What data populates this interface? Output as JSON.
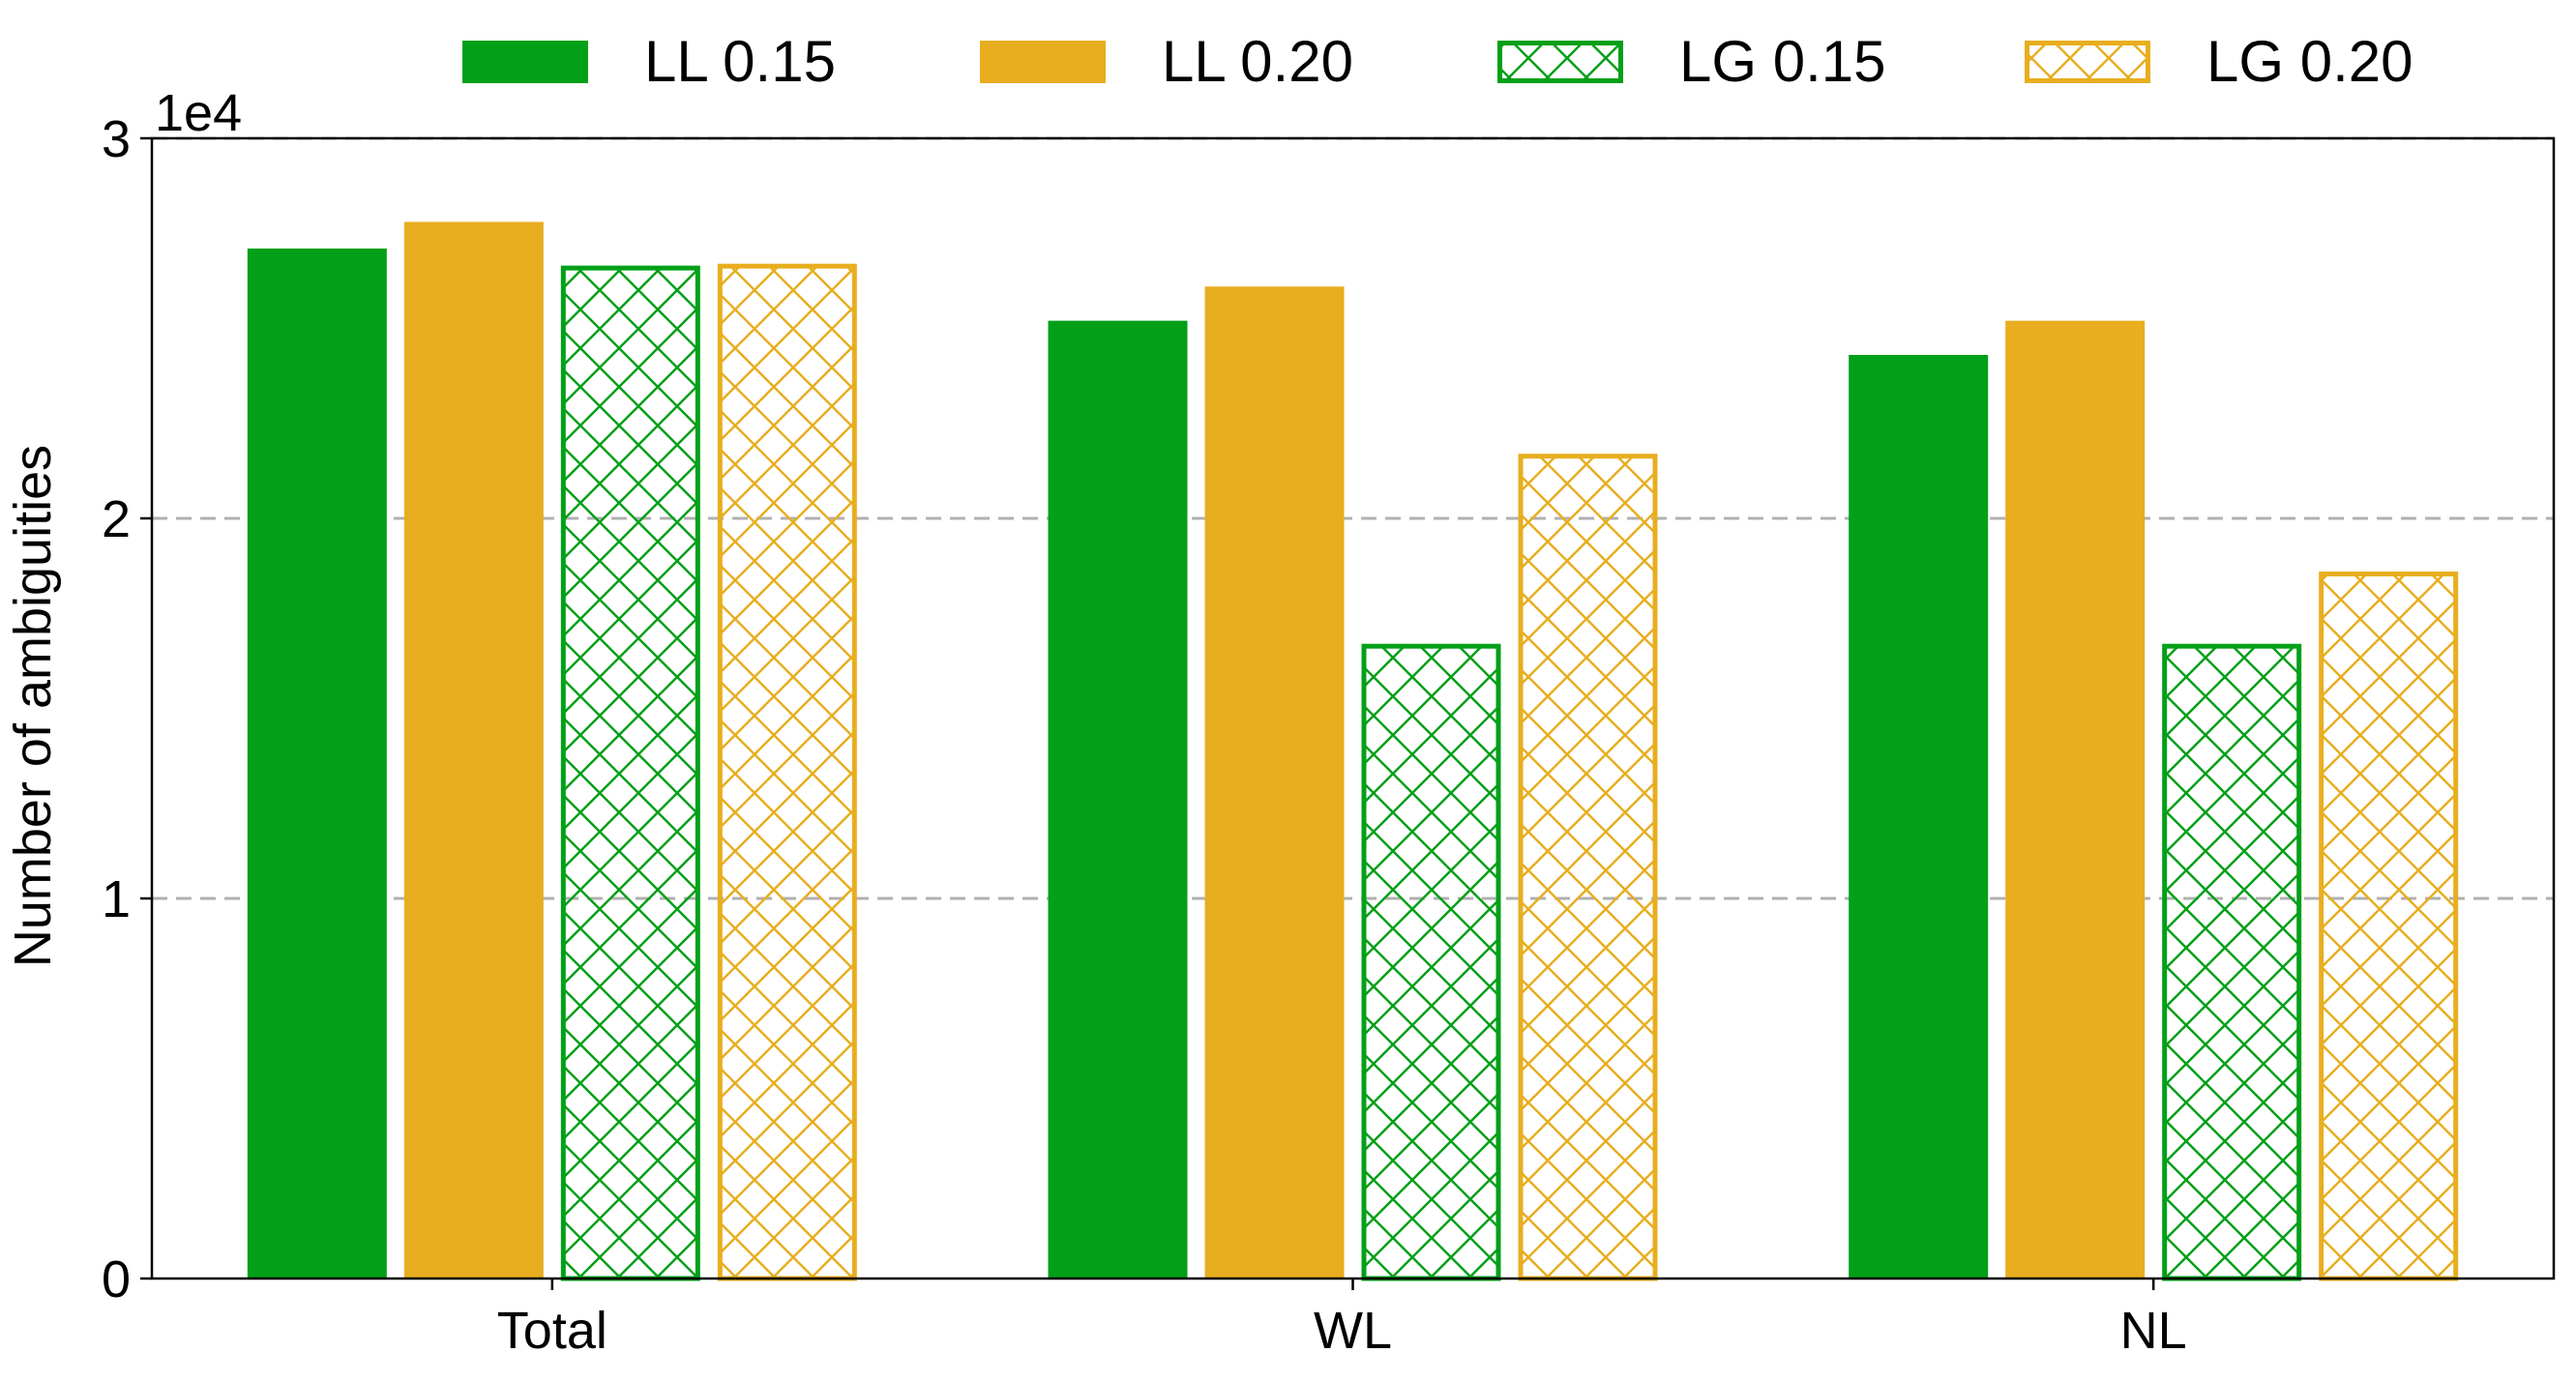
{
  "chart_data": {
    "type": "bar",
    "title": "",
    "xlabel": "",
    "ylabel": "Number of ambiguities",
    "y_multiplier_label": "1e4",
    "ylim": [
      0,
      30000
    ],
    "yticks": [
      0,
      10000,
      20000,
      30000
    ],
    "ytick_labels": [
      "0",
      "1",
      "2",
      "3"
    ],
    "grid": "horizontal dashed",
    "legend_position": "top",
    "categories": [
      "Total",
      "WL",
      "NL"
    ],
    "series": [
      {
        "name": "LL 0.15",
        "color": "#02a018",
        "style": "solid",
        "values": [
          27100,
          25200,
          24300
        ]
      },
      {
        "name": "LL 0.20",
        "color": "#e8ae1f",
        "style": "solid",
        "values": [
          27800,
          26100,
          25200
        ]
      },
      {
        "name": "LG 0.15",
        "color": "#02a018",
        "style": "crosshatch",
        "values": [
          26650,
          16700,
          16700
        ]
      },
      {
        "name": "LG 0.20",
        "color": "#e8ae1f",
        "style": "crosshatch",
        "values": [
          26700,
          21700,
          18600
        ]
      }
    ]
  }
}
